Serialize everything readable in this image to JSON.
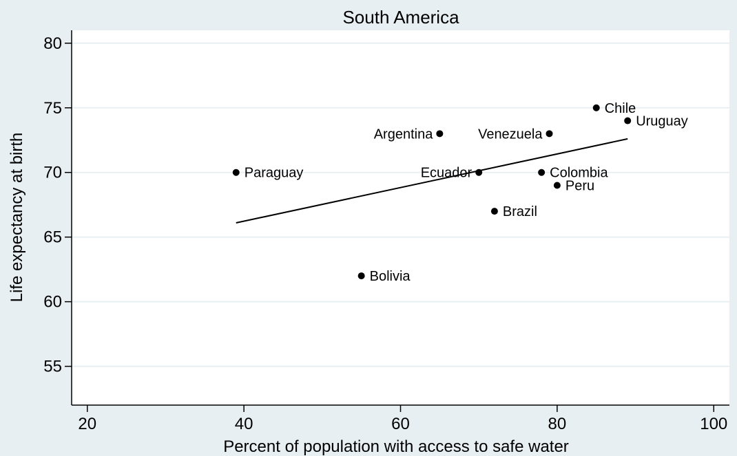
{
  "chart_data": {
    "type": "scatter",
    "title": "South America",
    "xlabel": "Percent of population with access to safe water",
    "ylabel": "Life expectancy at birth",
    "xlim": [
      18,
      102
    ],
    "ylim": [
      52,
      81
    ],
    "xticks": [
      20,
      40,
      60,
      80,
      100
    ],
    "yticks": [
      55,
      60,
      65,
      70,
      75,
      80
    ],
    "grid": "horizontal",
    "legend": "none",
    "points": [
      {
        "label": "Paraguay",
        "x": 39,
        "y": 70,
        "label_side": "right"
      },
      {
        "label": "Bolivia",
        "x": 55,
        "y": 62,
        "label_side": "right"
      },
      {
        "label": "Argentina",
        "x": 65,
        "y": 73,
        "label_side": "left"
      },
      {
        "label": "Ecuador",
        "x": 70,
        "y": 70,
        "label_side": "left"
      },
      {
        "label": "Brazil",
        "x": 72,
        "y": 67,
        "label_side": "right"
      },
      {
        "label": "Colombia",
        "x": 78,
        "y": 70,
        "label_side": "right"
      },
      {
        "label": "Venezuela",
        "x": 79,
        "y": 73,
        "label_side": "left"
      },
      {
        "label": "Peru",
        "x": 80,
        "y": 69,
        "label_side": "right"
      },
      {
        "label": "Chile",
        "x": 85,
        "y": 75,
        "label_side": "right"
      },
      {
        "label": "Uruguay",
        "x": 89,
        "y": 74,
        "label_side": "right"
      }
    ],
    "fit_line": {
      "x": [
        39,
        89
      ],
      "y": [
        66.1,
        72.6
      ]
    }
  },
  "colors": {
    "background": "#e8eff3",
    "plot_area": "#ffffff",
    "grid": "#e8eff3",
    "marker": "#000000",
    "line": "#000000"
  }
}
